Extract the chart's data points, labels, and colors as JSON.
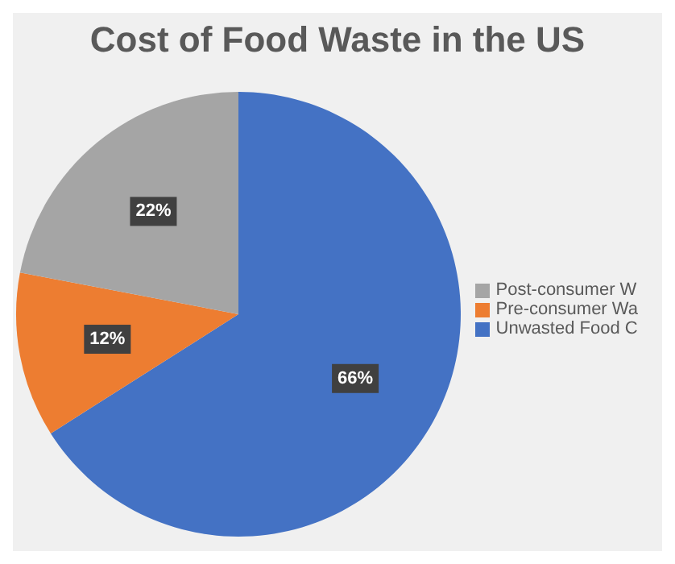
{
  "chart_data": {
    "type": "pie",
    "title": "Cost of Food Waste in the US",
    "categories": [
      "Unwasted Food C",
      "Pre-consumer Wa",
      "Post-consumer W"
    ],
    "values": [
      66,
      12,
      22
    ],
    "colors": [
      "#4472c4",
      "#ed7d31",
      "#a5a5a5"
    ],
    "value_labels": [
      "66%",
      "12%",
      "22%"
    ],
    "legend": "right"
  }
}
